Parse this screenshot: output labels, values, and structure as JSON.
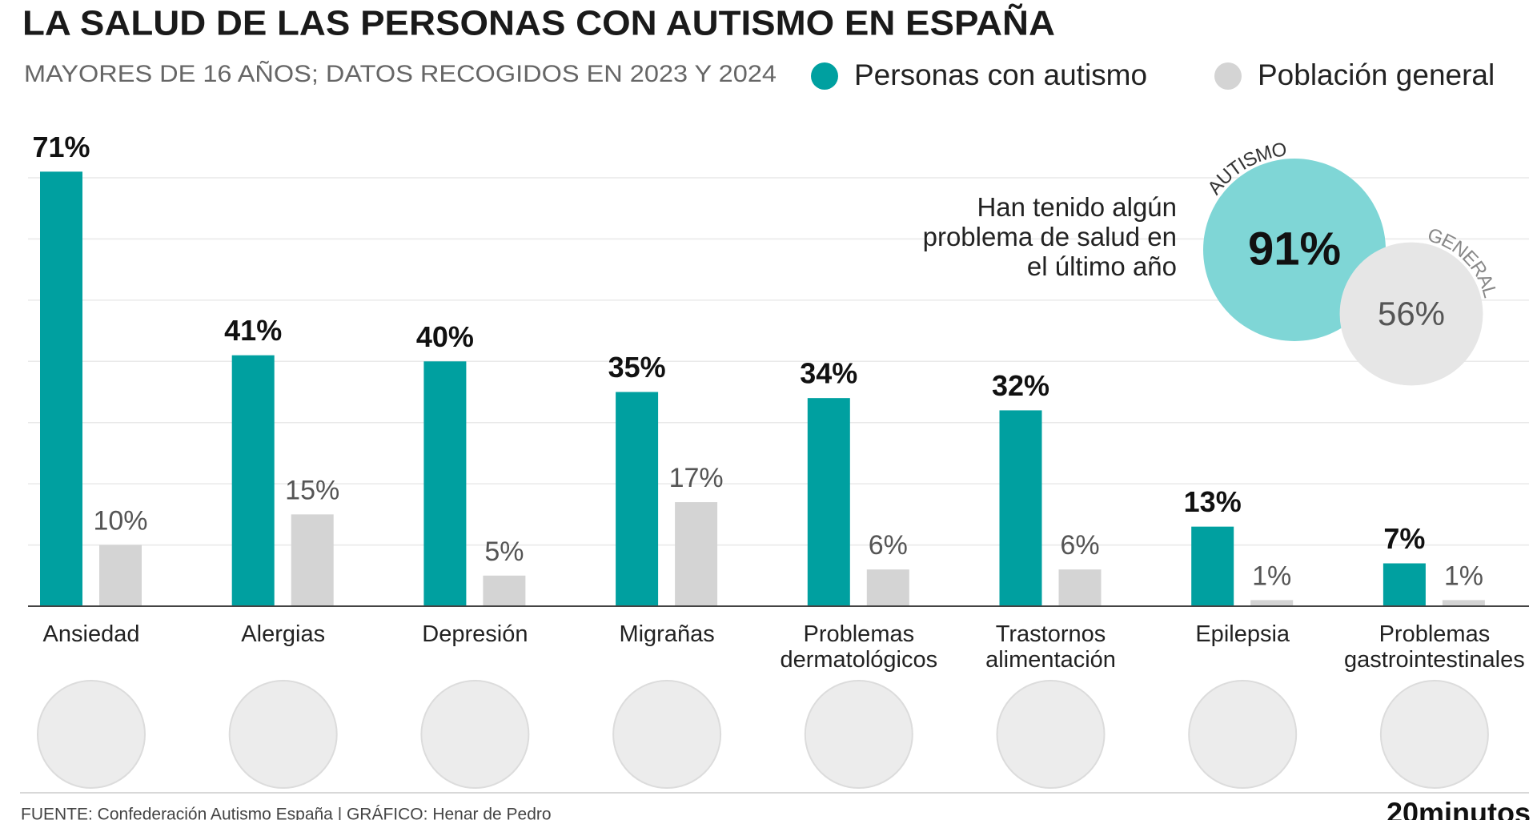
{
  "chart_data": {
    "type": "bar",
    "title": "LA SALUD DE LAS PERSONAS CON AUTISMO EN ESPAÑA",
    "subtitle": "MAYORES DE 16 AÑOS; DATOS RECOGIDOS EN 2023 Y 2024",
    "categories": [
      "Ansiedad",
      "Alergias",
      "Depresión",
      "Migrañas",
      "Problemas dermatológicos",
      "Trastornos alimentación",
      "Epilepsia",
      "Problemas gastrointestinales"
    ],
    "series": [
      {
        "name": "Personas con autismo",
        "color": "#00a0a0",
        "values": [
          71,
          41,
          40,
          35,
          34,
          32,
          13,
          7
        ],
        "value_labels": [
          "71%",
          "41%",
          "40%",
          "35%",
          "34%",
          "32%",
          "13%",
          "7%"
        ]
      },
      {
        "name": "Población general",
        "color": "#d4d4d4",
        "values": [
          10,
          15,
          5,
          17,
          6,
          6,
          1,
          1
        ],
        "value_labels": [
          "10%",
          "15%",
          "5%",
          "17%",
          "6%",
          "6%",
          "1%",
          "1%"
        ]
      }
    ],
    "ylim": [
      0,
      70
    ],
    "yticks": [
      10,
      20,
      30,
      40,
      50,
      60,
      70
    ],
    "grid": true,
    "inset": {
      "text": "Han tenido algún problema de salud en el último año",
      "circles": [
        {
          "name": "AUTISMO",
          "value": 91,
          "value_label": "91%",
          "color": "#7fd6d6"
        },
        {
          "name": "GENERAL",
          "value": 56,
          "value_label": "56%",
          "color": "#e6e6e6"
        }
      ]
    },
    "source": "FUENTE: Confederación Autismo España | GRÁFICO: Henar de Pedro",
    "brand": "20minutos"
  }
}
